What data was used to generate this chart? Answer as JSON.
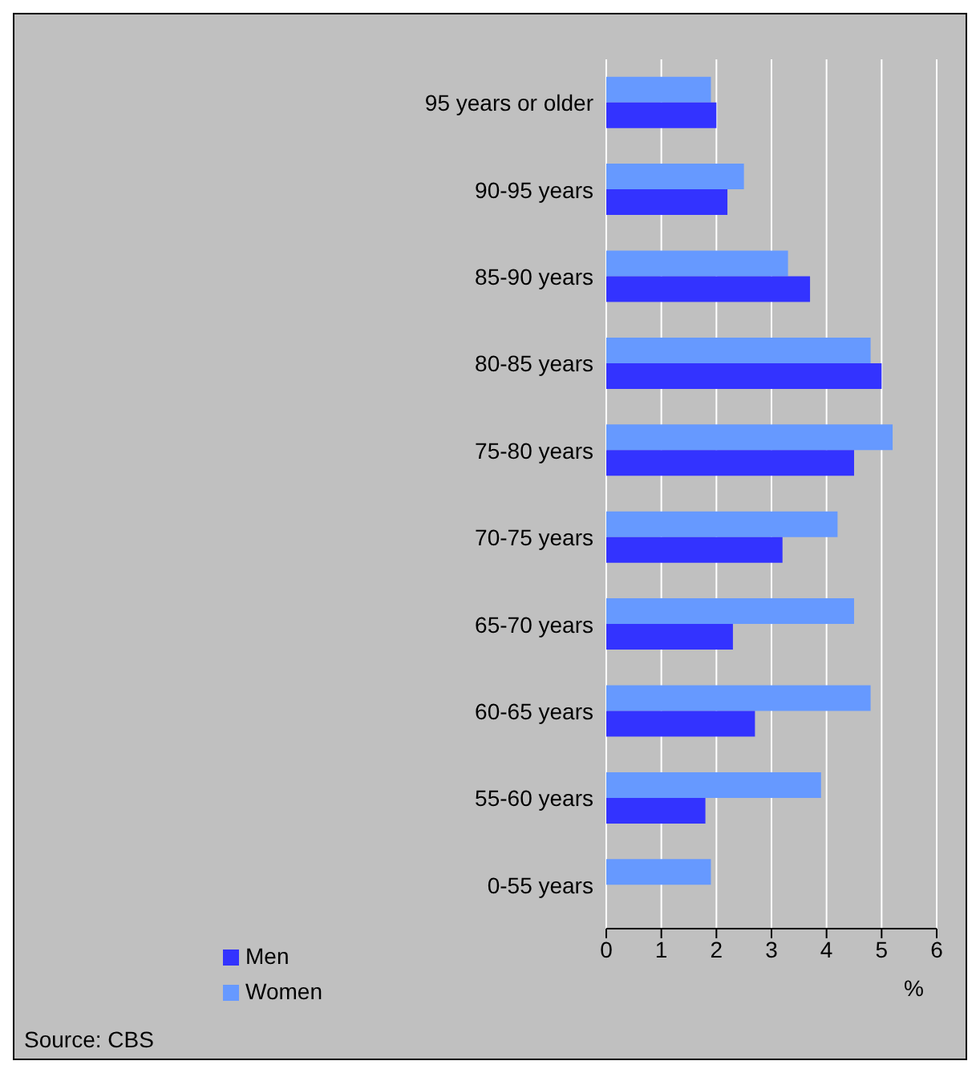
{
  "chart_data": {
    "type": "bar",
    "orientation": "horizontal",
    "categories": [
      "95 years or older",
      "90-95 years",
      "85-90 years",
      "80-85 years",
      "75-80 years",
      "70-75 years",
      "65-70 years",
      "60-65 years",
      "55-60 years",
      "0-55 years"
    ],
    "series": [
      {
        "name": "Women",
        "color": "#6699ff",
        "values": [
          1.9,
          2.5,
          3.3,
          4.8,
          5.2,
          4.2,
          4.5,
          4.8,
          3.9,
          1.9
        ]
      },
      {
        "name": "Men",
        "color": "#3333ff",
        "values": [
          2.0,
          2.2,
          3.7,
          5.0,
          4.5,
          3.2,
          2.3,
          2.7,
          1.8,
          null
        ]
      }
    ],
    "xlim": [
      0,
      6
    ],
    "xticks": [
      0,
      1,
      2,
      3,
      4,
      5,
      6
    ],
    "xlabel": "%",
    "grid": "x",
    "legend": "bottom left",
    "annotations": [
      "Source: CBS"
    ]
  }
}
